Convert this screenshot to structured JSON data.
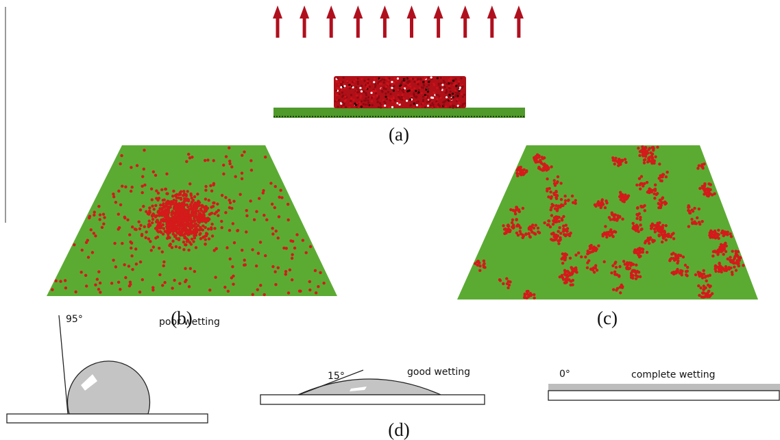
{
  "panels": {
    "a": {
      "label": "(a)"
    },
    "b": {
      "label": "(b)"
    },
    "c": {
      "label": "(c)"
    },
    "d": {
      "label": "(d)",
      "cases": [
        {
          "angle": "95°",
          "label": "poor wetting"
        },
        {
          "angle": "15°",
          "label": "good wetting"
        },
        {
          "angle": "0°",
          "label": "complete wetting"
        }
      ]
    }
  }
}
